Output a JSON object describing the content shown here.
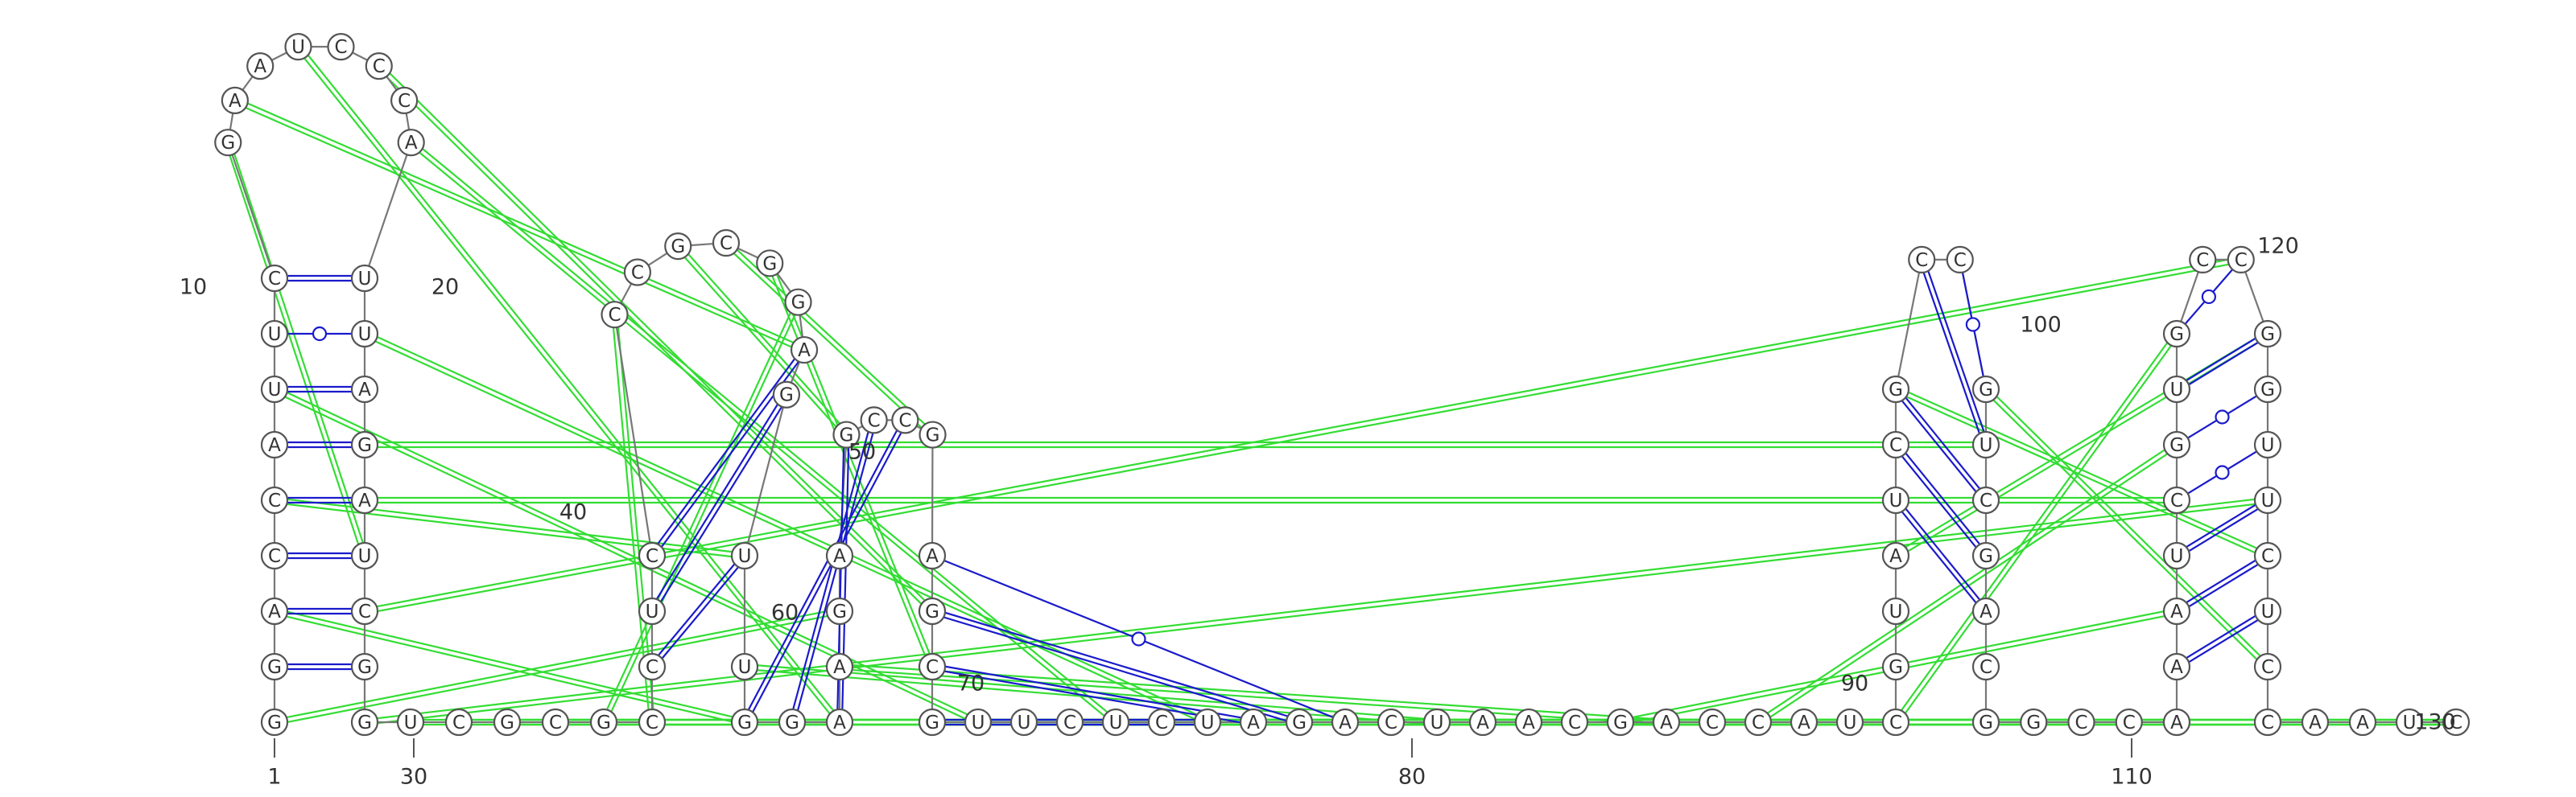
{
  "colors": {
    "canonical_pair": "#1a1acc",
    "pseudoknot_interaction": "#33dd33",
    "backbone": "#777777"
  },
  "residues": [
    "G",
    "G",
    "A",
    "C",
    "C",
    "A",
    "U",
    "U",
    "C",
    "G",
    "A",
    "A",
    "U",
    "C",
    "C",
    "C",
    "A",
    "U",
    "U",
    "A",
    "G",
    "A",
    "U",
    "C",
    "G",
    "G",
    "U",
    "C",
    "G",
    "C",
    "G",
    "C",
    "C",
    "U",
    "C",
    "C",
    "C",
    "G",
    "C",
    "G",
    "G",
    "A",
    "G",
    "U",
    "U",
    "G",
    "G",
    "A",
    "A",
    "G",
    "A",
    "G",
    "C",
    "C",
    "G",
    "A",
    "G",
    "C",
    "G",
    "U",
    "U",
    "C",
    "U",
    "C",
    "U",
    "A",
    "G",
    "A",
    "C",
    "U",
    "A",
    "A",
    "C",
    "G",
    "A",
    "C",
    "C",
    "A",
    "U",
    "C",
    "G",
    "U",
    "A",
    "U",
    "C",
    "G",
    "C",
    "C",
    "G",
    "U",
    "C",
    "G",
    "A",
    "C",
    "G",
    "G",
    "C",
    "C",
    "A",
    "A",
    "A",
    "U",
    "C",
    "G",
    "U",
    "G",
    "C",
    "C",
    "G",
    "G",
    "U",
    "U",
    "C",
    "U",
    "C",
    "C",
    "A",
    "A",
    "U",
    "C"
  ],
  "position_labels": [
    "1",
    "10",
    "20",
    "30",
    "40",
    "50",
    "60",
    "70",
    "80",
    "90",
    "100",
    "110",
    "120",
    "130"
  ],
  "base_pairs": [
    [
      2,
      25
    ],
    [
      3,
      24
    ],
    [
      4,
      23
    ],
    [
      5,
      22
    ],
    [
      6,
      21
    ],
    [
      7,
      20
    ],
    [
      8,
      19
    ],
    [
      9,
      18
    ],
    [
      33,
      44
    ],
    [
      34,
      43
    ],
    [
      35,
      42
    ],
    [
      46,
      54
    ],
    [
      47,
      53
    ],
    [
      48,
      52
    ],
    [
      56,
      68
    ],
    [
      57,
      67
    ],
    [
      58,
      66
    ],
    [
      59,
      65
    ],
    [
      60,
      64
    ],
    [
      84,
      93
    ],
    [
      85,
      92
    ],
    [
      86,
      91
    ],
    [
      87,
      90
    ],
    [
      88,
      89
    ],
    [
      100,
      114
    ],
    [
      101,
      113
    ],
    [
      102,
      112
    ],
    [
      103,
      111
    ],
    [
      104,
      110
    ],
    [
      105,
      109
    ],
    [
      106,
      108
    ]
  ],
  "noncanonical_pairs": [
    [
      8,
      19
    ],
    [
      56,
      68
    ],
    [
      88,
      89
    ],
    [
      103,
      111
    ],
    [
      104,
      110
    ],
    [
      106,
      108
    ]
  ],
  "pseudoknot_links": [
    [
      1,
      50
    ],
    [
      3,
      46
    ],
    [
      5,
      44
    ],
    [
      7,
      60
    ],
    [
      10,
      23
    ],
    [
      11,
      42
    ],
    [
      13,
      48
    ],
    [
      15,
      57
    ],
    [
      17,
      63
    ],
    [
      19,
      65
    ],
    [
      21,
      90
    ],
    [
      22,
      103
    ],
    [
      24,
      108
    ],
    [
      26,
      112
    ],
    [
      27,
      117
    ],
    [
      28,
      121
    ],
    [
      29,
      125
    ],
    [
      30,
      127
    ],
    [
      31,
      41
    ],
    [
      32,
      36
    ],
    [
      38,
      52
    ],
    [
      39,
      55
    ],
    [
      40,
      58
    ],
    [
      45,
      70
    ],
    [
      47,
      73
    ],
    [
      49,
      75
    ],
    [
      61,
      79
    ],
    [
      69,
      95
    ],
    [
      71,
      98
    ],
    [
      74,
      101
    ],
    [
      77,
      104
    ],
    [
      80,
      106
    ],
    [
      83,
      109
    ],
    [
      86,
      113
    ],
    [
      89,
      115
    ]
  ]
}
